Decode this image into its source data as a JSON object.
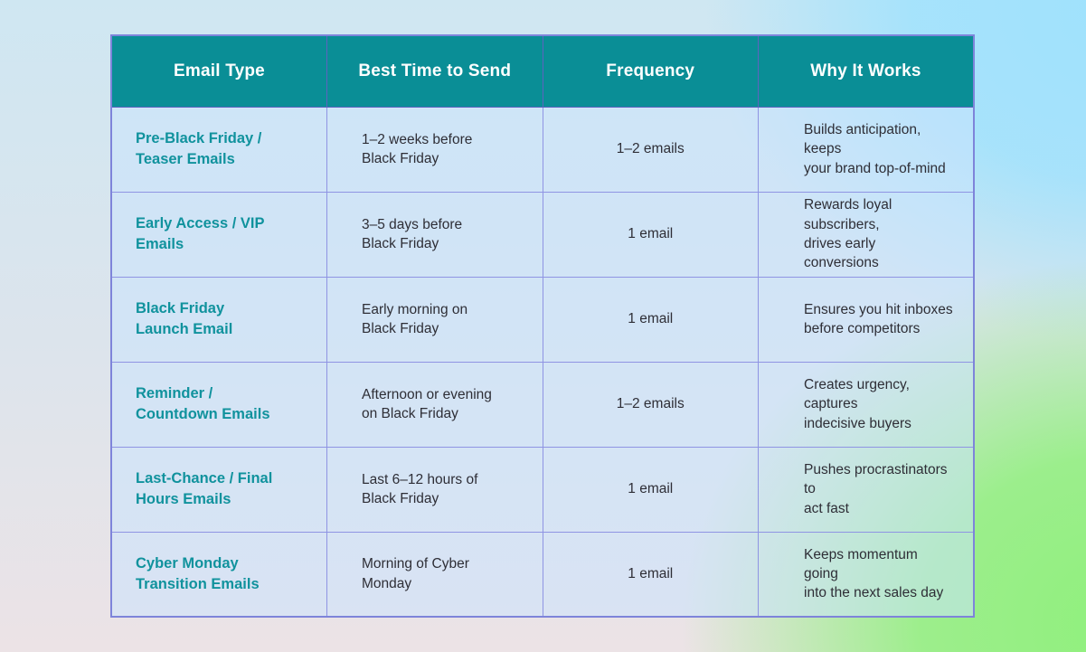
{
  "colors": {
    "header_bg": "#0a8e96",
    "header_text": "#ffffff",
    "accent_teal_text": "#10929d",
    "body_text": "#2e2e36",
    "grid_border": "#8f94e3",
    "cell_overlay": "rgba(203,227,253,0.55)",
    "bg_top_right": "#9fe2fd",
    "bg_bottom_right": "#8ff07c",
    "bg_top_left": "#cfe7f2",
    "bg_bottom_left": "#ece3e6"
  },
  "table": {
    "headers": [
      "Email Type",
      "Best Time to Send",
      "Frequency",
      "Why It Works"
    ],
    "rows": [
      {
        "email_type": "Pre-Black Friday /\nTeaser Emails",
        "best_time": "1–2 weeks before\nBlack Friday",
        "frequency": "1–2 emails",
        "why_it_works": "Builds anticipation, keeps\nyour brand top-of-mind"
      },
      {
        "email_type": "Early Access / VIP\nEmails",
        "best_time": "3–5 days before\nBlack Friday",
        "frequency": "1 email",
        "why_it_works": "Rewards loyal subscribers,\ndrives early conversions"
      },
      {
        "email_type": "Black Friday\nLaunch Email",
        "best_time": "Early morning on\nBlack Friday",
        "frequency": "1 email",
        "why_it_works": "Ensures you hit inboxes\nbefore competitors"
      },
      {
        "email_type": "Reminder /\nCountdown Emails",
        "best_time": "Afternoon or evening\non Black Friday",
        "frequency": "1–2 emails",
        "why_it_works": "Creates urgency, captures\nindecisive buyers"
      },
      {
        "email_type": "Last-Chance / Final\nHours Emails",
        "best_time": "Last 6–12 hours of\nBlack Friday",
        "frequency": "1 email",
        "why_it_works": "Pushes procrastinators to\nact fast"
      },
      {
        "email_type": "Cyber Monday\nTransition Emails",
        "best_time": "Morning of Cyber\nMonday",
        "frequency": "1 email",
        "why_it_works": "Keeps momentum going\ninto the next sales day"
      }
    ]
  }
}
